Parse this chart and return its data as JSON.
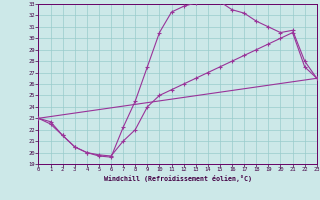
{
  "bg_color": "#cce8e8",
  "grid_color": "#99cccc",
  "line_color": "#993399",
  "spine_color": "#660066",
  "tick_color": "#440044",
  "xlabel": "Windchill (Refroidissement éolien,°C)",
  "xlim": [
    0,
    23
  ],
  "ylim": [
    19,
    33
  ],
  "xticks": [
    0,
    1,
    2,
    3,
    4,
    5,
    6,
    7,
    8,
    9,
    10,
    11,
    12,
    13,
    14,
    15,
    16,
    17,
    18,
    19,
    20,
    21,
    22,
    23
  ],
  "yticks": [
    19,
    20,
    21,
    22,
    23,
    24,
    25,
    26,
    27,
    28,
    29,
    30,
    31,
    32,
    33
  ],
  "curve1_x": [
    0,
    1,
    2,
    3,
    4,
    5,
    6,
    7,
    8,
    9,
    10,
    11,
    12,
    13,
    14,
    15,
    16,
    17,
    18,
    19,
    20,
    21,
    22,
    23
  ],
  "curve1_y": [
    23,
    22.5,
    21.5,
    20.5,
    20.0,
    19.7,
    19.6,
    22.2,
    24.5,
    27.5,
    30.5,
    32.3,
    32.8,
    33.1,
    33.5,
    33.2,
    32.5,
    32.2,
    31.5,
    31.0,
    30.5,
    30.7,
    28.0,
    26.5
  ],
  "curve2_x": [
    0,
    1,
    2,
    3,
    4,
    5,
    6,
    7,
    8,
    9,
    10,
    11,
    12,
    13,
    14,
    15,
    16,
    17,
    18,
    19,
    20,
    21,
    22,
    23
  ],
  "curve2_y": [
    23,
    22.7,
    21.5,
    20.5,
    20.0,
    19.8,
    19.7,
    21.0,
    22.0,
    24.0,
    25.0,
    25.5,
    26.0,
    26.5,
    27.0,
    27.5,
    28.0,
    28.5,
    29.0,
    29.5,
    30.0,
    30.5,
    27.5,
    26.5
  ],
  "line3_x": [
    0,
    23
  ],
  "line3_y": [
    23,
    26.5
  ]
}
